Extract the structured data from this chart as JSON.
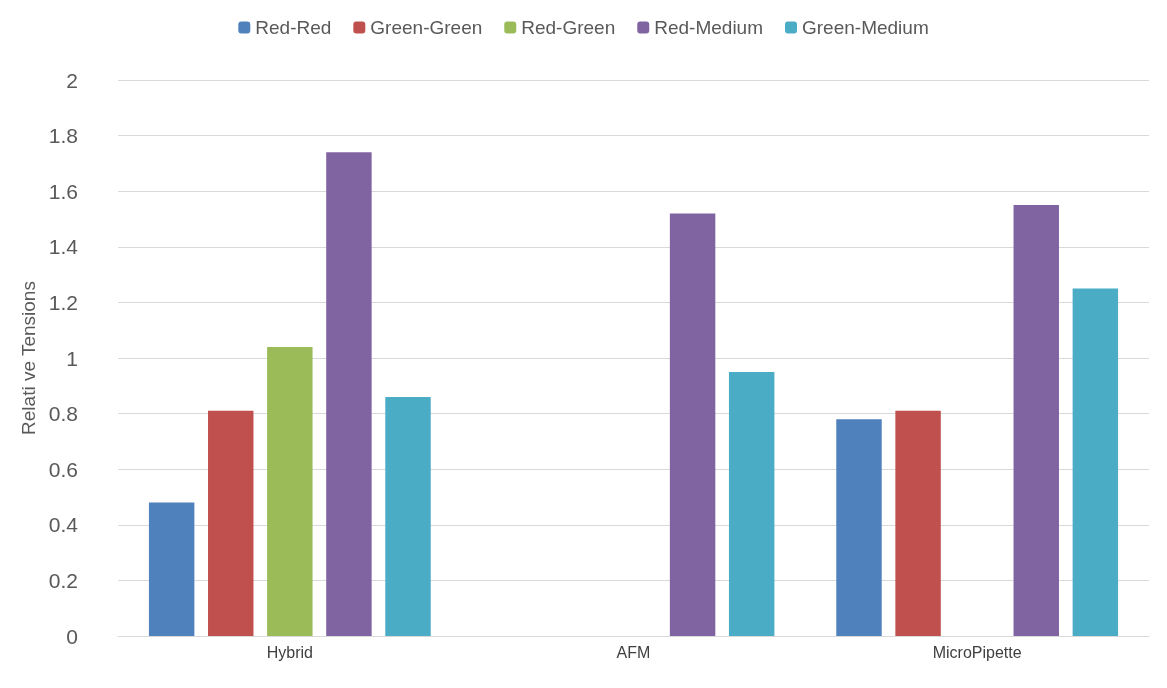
{
  "chart_data": {
    "type": "bar",
    "ylabel": "Relati ve Tensions",
    "categories": [
      "Hybrid",
      "AFM",
      "MicroPipette"
    ],
    "series": [
      {
        "name": "Red-Red",
        "color": "#4f81bd",
        "values": [
          0.48,
          null,
          0.78
        ]
      },
      {
        "name": "Green-Green",
        "color": "#c0504d",
        "values": [
          0.81,
          null,
          0.81
        ]
      },
      {
        "name": "Red-Green",
        "color": "#9bbb59",
        "values": [
          1.04,
          null,
          null
        ]
      },
      {
        "name": "Red-Medium",
        "color": "#8064a2",
        "values": [
          1.74,
          1.52,
          1.55
        ]
      },
      {
        "name": "Green-Medium",
        "color": "#4bacc6",
        "values": [
          0.86,
          0.95,
          1.25
        ]
      }
    ],
    "ylim": [
      0,
      2
    ],
    "yticks": [
      0,
      0.2,
      0.4,
      0.6,
      0.8,
      1,
      1.2,
      1.4,
      1.6,
      1.8,
      2
    ],
    "grid": "y",
    "legend": "top"
  }
}
